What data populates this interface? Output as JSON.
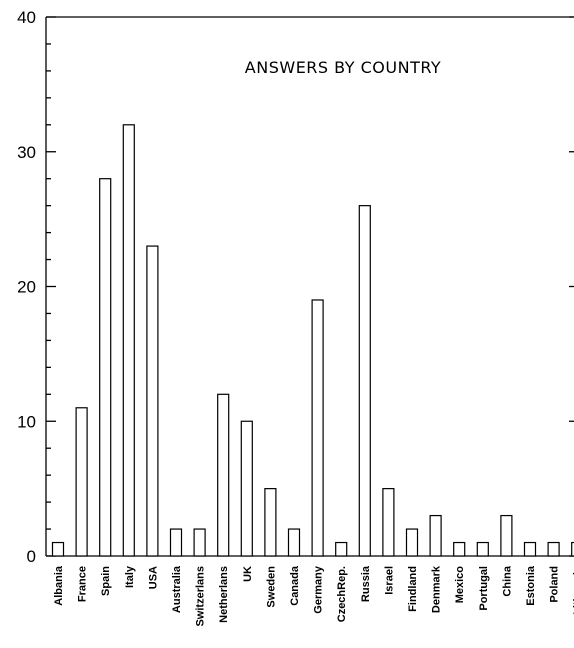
{
  "chart_data": {
    "type": "bar",
    "title": "ANSWERS BY COUNTRY",
    "xlabel": "",
    "ylabel": "",
    "ylim": [
      0,
      40
    ],
    "yticks": [
      0,
      10,
      20,
      30,
      40
    ],
    "categories": [
      "Albania",
      "France",
      "Spain",
      "Italy",
      "USA",
      "Australia",
      "Switzerlans",
      "Netherlans",
      "UK",
      "Sweden",
      "Canada",
      "Germany",
      "CzechRep.",
      "Russia",
      "Israel",
      "Findland",
      "Denmark",
      "Mexico",
      "Portugal",
      "China",
      "Estonia",
      "Poland",
      "Lithuania"
    ],
    "values": [
      1,
      11,
      28,
      32,
      23,
      2,
      2,
      12,
      10,
      5,
      2,
      19,
      1,
      26,
      5,
      2,
      3,
      1,
      1,
      3,
      1,
      1,
      1
    ],
    "grid": false,
    "legend": "none"
  }
}
